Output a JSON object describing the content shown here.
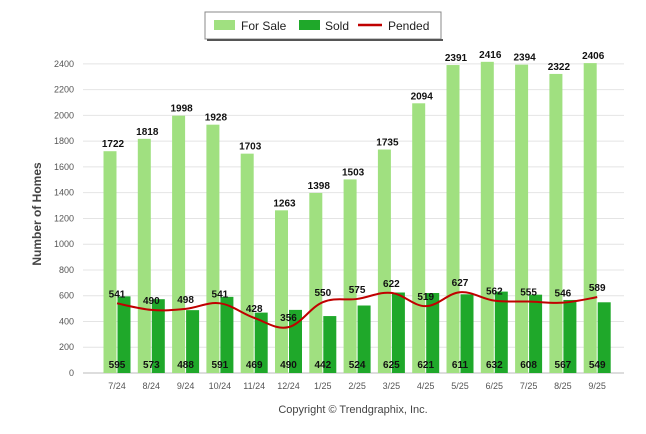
{
  "chart_data": {
    "type": "bar",
    "ylabel": "Number of Homes",
    "xlabel": "",
    "ylim": [
      0,
      2500
    ],
    "yticks": [
      0,
      200,
      400,
      600,
      800,
      1000,
      1200,
      1400,
      1600,
      1800,
      2000,
      2200,
      2400
    ],
    "grid": true,
    "legend": "top-center",
    "categories": [
      "7/24",
      "8/24",
      "9/24",
      "10/24",
      "11/24",
      "12/24",
      "1/25",
      "2/25",
      "3/25",
      "4/25",
      "5/25",
      "6/25",
      "7/25",
      "8/25",
      "9/25"
    ],
    "series": [
      {
        "name": "For Sale",
        "type": "bar",
        "color": "#a0e080",
        "values": [
          1722,
          1818,
          1998,
          1928,
          1703,
          1263,
          1398,
          1503,
          1735,
          2094,
          2391,
          2416,
          2394,
          2322,
          2406
        ]
      },
      {
        "name": "Sold",
        "type": "bar",
        "color": "#1fa82a",
        "values": [
          595,
          573,
          488,
          591,
          469,
          490,
          442,
          524,
          625,
          621,
          611,
          632,
          608,
          567,
          549
        ]
      },
      {
        "name": "Pended",
        "type": "line",
        "color": "#c00000",
        "values": [
          541,
          490,
          498,
          541,
          428,
          356,
          550,
          575,
          622,
          519,
          627,
          562,
          555,
          546,
          589
        ]
      }
    ],
    "copyright": "Copyright © Trendgraphix, Inc."
  }
}
